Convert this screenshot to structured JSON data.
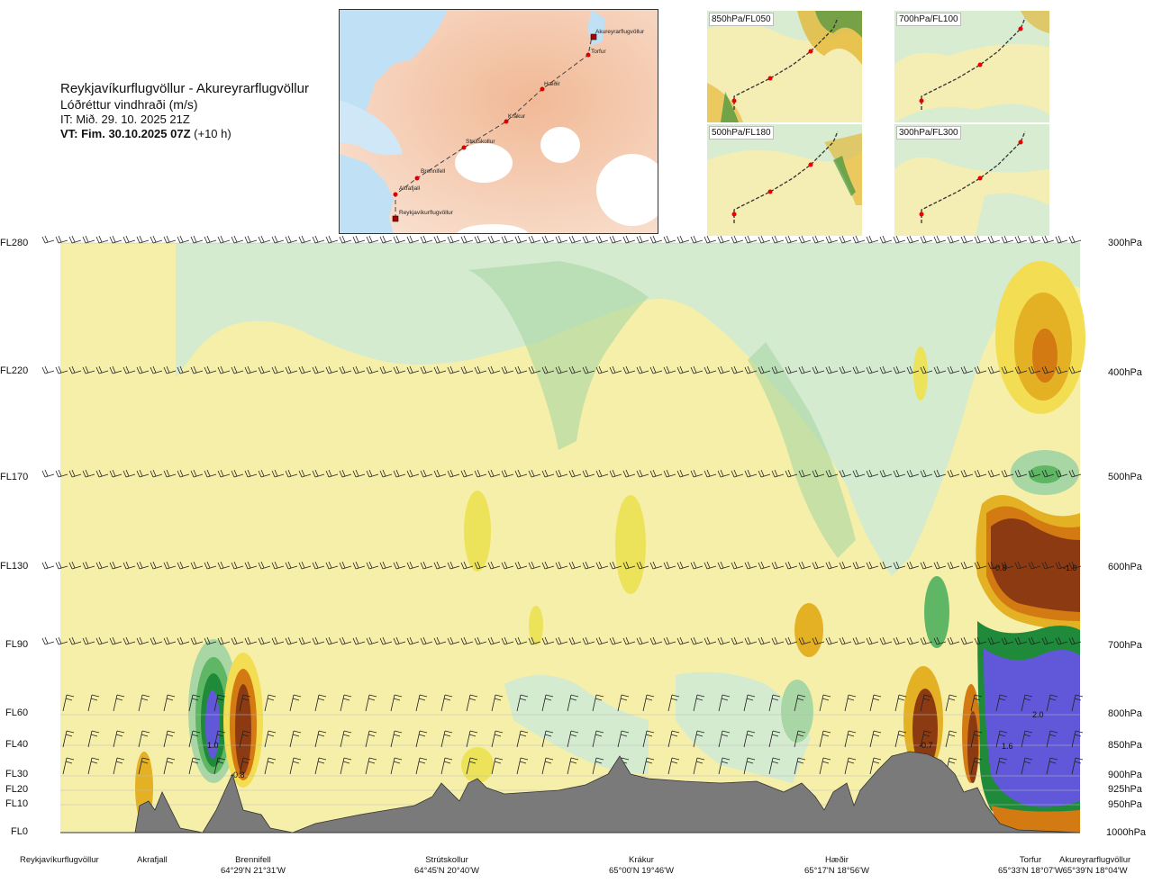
{
  "header": {
    "route": "Reykjavíkurflugvöllur - Akureyrarflugvöllur",
    "parameter": "Lóðréttur vindhraði (m/s)",
    "issue_time": "IT: Mið. 29. 10. 2025 21Z",
    "valid_time_bold": "VT: Fim. 30.10.2025 07Z",
    "valid_time_offset": "(+10 h)"
  },
  "route_map": {
    "points": [
      "Akureyrarflugvöllur",
      "Torfur",
      "Hæðir",
      "Krákur",
      "Strútskollur",
      "Brennifell",
      "Akrafjall",
      "Reykjavíkurflugvöllur"
    ]
  },
  "level_maps": [
    {
      "label": "850hPa/FL050"
    },
    {
      "label": "700hPa/FL100"
    },
    {
      "label": "500hPa/FL180"
    },
    {
      "label": "300hPa/FL300"
    }
  ],
  "flight_levels": [
    "FL280",
    "FL220",
    "FL170",
    "FL130",
    "FL90",
    "FL60",
    "FL40",
    "FL30",
    "FL20",
    "FL10",
    "FL0"
  ],
  "pressure_levels": [
    "300hPa",
    "400hPa",
    "500hPa",
    "600hPa",
    "700hPa",
    "800hPa",
    "850hPa",
    "900hPa",
    "925hPa",
    "950hPa",
    "1000hPa"
  ],
  "contour_labels": [
    "1.0",
    "-0.8",
    "-0.8",
    "-1.0",
    "2.0",
    "1.6",
    "-0.7"
  ],
  "stations": [
    {
      "name": "Reykjavíkurflugvöllur",
      "coord": ""
    },
    {
      "name": "Akrafjall",
      "coord": ""
    },
    {
      "name": "Brennifell",
      "coord": "64°29'N 21°31'W"
    },
    {
      "name": "Strútskollur",
      "coord": "64°45'N 20°40'W"
    },
    {
      "name": "Krákur",
      "coord": "65°00'N 19°46'W"
    },
    {
      "name": "Hæðir",
      "coord": "65°17'N 18°56'W"
    },
    {
      "name": "Torfur",
      "coord": "65°33'N 18°07'W"
    },
    {
      "name": "Akureyrarflugvöllur",
      "coord": "65°39'N 18°04'W"
    }
  ],
  "colors": {
    "terrain": "#7a7a7a",
    "pale_yellow": "#f6efa9",
    "yellow": "#ece35a",
    "gold": "#e4b024",
    "orange": "#d47a12",
    "brown": "#8c3a12",
    "pale_green": "#d4ebd0",
    "light_green": "#a8d6a4",
    "green": "#5fb664",
    "dark_green": "#1f8a3a",
    "blue_purple": "#6058d8"
  }
}
